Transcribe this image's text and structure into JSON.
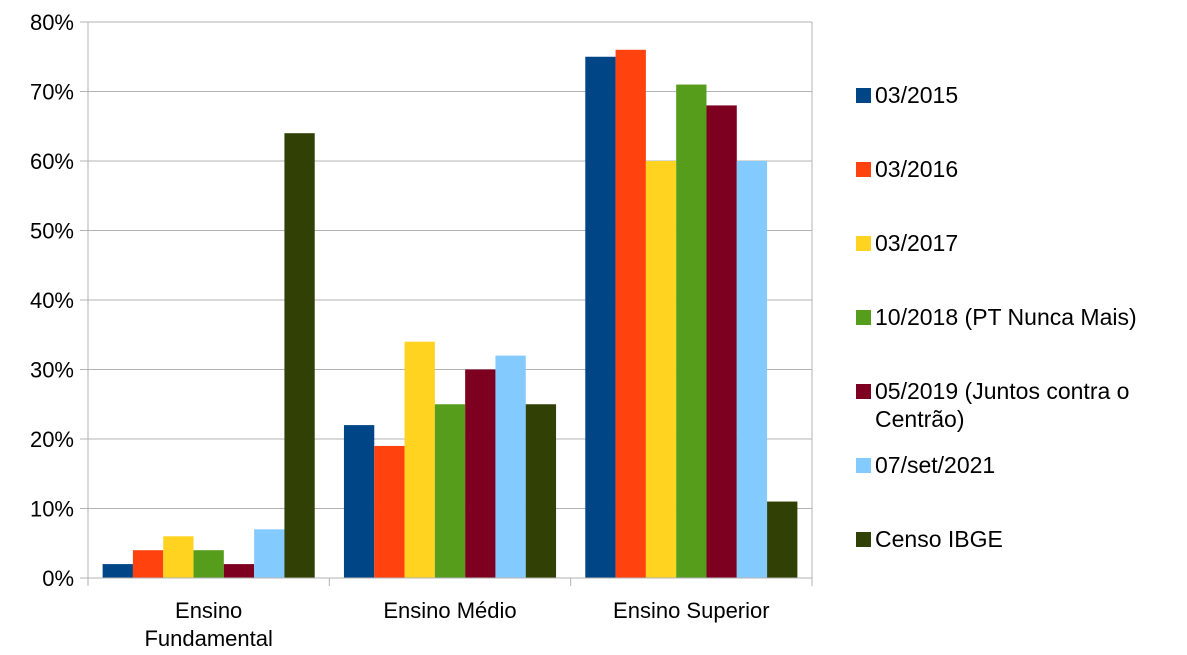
{
  "chart_data": {
    "type": "bar",
    "categories": [
      "Ensino Fundamental",
      "Ensino Médio",
      "Ensino Superior"
    ],
    "category_labels": [
      [
        "Ensino",
        "Fundamental"
      ],
      [
        "Ensino Médio"
      ],
      [
        "Ensino Superior"
      ]
    ],
    "series": [
      {
        "name": "03/2015",
        "color": "#004586",
        "values": [
          2,
          22,
          75
        ]
      },
      {
        "name": "03/2016",
        "color": "#ff420e",
        "values": [
          4,
          19,
          76
        ]
      },
      {
        "name": "03/2017",
        "color": "#ffd320",
        "values": [
          6,
          34,
          60
        ]
      },
      {
        "name": "10/2018 (PT Nunca Mais)",
        "color": "#579d1c",
        "values": [
          4,
          25,
          71
        ]
      },
      {
        "name": "05/2019 (Juntos contra o Centrão)",
        "color": "#7e0021",
        "values": [
          2,
          30,
          68
        ]
      },
      {
        "name": "07/set/2021",
        "color": "#83caff",
        "values": [
          7,
          32,
          60
        ]
      },
      {
        "name": "Censo IBGE",
        "color": "#314004",
        "values": [
          64,
          25,
          11
        ]
      }
    ],
    "ylim": [
      0,
      80
    ],
    "yticks": [
      0,
      10,
      20,
      30,
      40,
      50,
      60,
      70,
      80
    ],
    "ytick_labels": [
      "0%",
      "10%",
      "20%",
      "30%",
      "40%",
      "50%",
      "60%",
      "70%",
      "80%"
    ],
    "grid": true,
    "legend_position": "right",
    "title": "",
    "xlabel": "",
    "ylabel": ""
  }
}
